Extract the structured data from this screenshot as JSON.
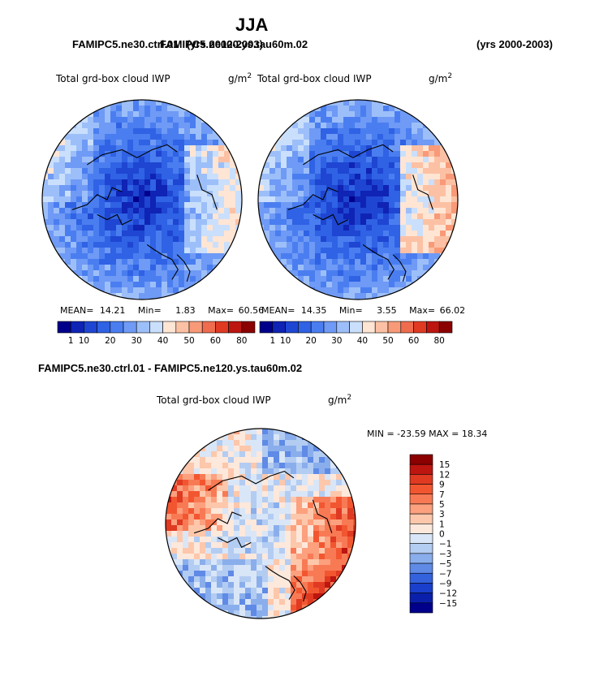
{
  "header": {
    "season": "JJA",
    "case_left": "FAMIPC5.ne30.ctrl.01",
    "case_right": "FAMIPC5.ne120.ys.tau60m.02",
    "years_left": "(yrs 2000-2003)",
    "years_right": "(yrs 2000-2003)"
  },
  "panels": {
    "left": {
      "field": "Total grd-box cloud IWP",
      "units_base": "g/m",
      "units_exp": "2",
      "stats": {
        "mean_label": "MEAN=",
        "mean": "14.21",
        "min_label": "Min=",
        "min": "1.83",
        "max_label": "Max=",
        "max": "60.56"
      }
    },
    "right": {
      "field": "Total grd-box cloud IWP",
      "units_base": "g/m",
      "units_exp": "2",
      "stats": {
        "mean_label": "MEAN=",
        "mean": "14.35",
        "min_label": "Min=",
        "min": "3.55",
        "max_label": "Max=",
        "max": "66.02"
      }
    },
    "diff": {
      "title": "FAMIPC5.ne30.ctrl.01 - FAMIPC5.ne120.ys.tau60m.02",
      "field": "Total grd-box cloud IWP",
      "units_base": "g/m",
      "units_exp": "2",
      "stats": "MIN = -23.59 MAX =  18.34"
    }
  },
  "chart_data": [
    {
      "type": "heatmap",
      "projection": "north polar stereographic",
      "title": "Total grd-box cloud IWP",
      "units": "g/m2",
      "mean": 14.21,
      "min": 1.83,
      "max": 60.56,
      "colorbar": {
        "tick_labels": [
          "1",
          "10",
          "20",
          "30",
          "40",
          "50",
          "60",
          "80"
        ],
        "colors": [
          "#00008b",
          "#0f23b4",
          "#1e46d2",
          "#2f62e4",
          "#4a7ef0",
          "#6f9af5",
          "#9dbff9",
          "#c9dffc",
          "#ffe5d4",
          "#fcc1a4",
          "#f89a78",
          "#f06c4e",
          "#e03a22",
          "#bd1510",
          "#8b0000"
        ]
      }
    },
    {
      "type": "heatmap",
      "projection": "north polar stereographic",
      "title": "Total grd-box cloud IWP",
      "units": "g/m2",
      "mean": 14.35,
      "min": 3.55,
      "max": 66.02,
      "colorbar": {
        "tick_labels": [
          "1",
          "10",
          "20",
          "30",
          "40",
          "50",
          "60",
          "80"
        ],
        "colors": [
          "#00008b",
          "#0f23b4",
          "#1e46d2",
          "#2f62e4",
          "#4a7ef0",
          "#6f9af5",
          "#9dbff9",
          "#c9dffc",
          "#ffe5d4",
          "#fcc1a4",
          "#f89a78",
          "#f06c4e",
          "#e03a22",
          "#bd1510",
          "#8b0000"
        ]
      }
    },
    {
      "type": "heatmap",
      "projection": "north polar stereographic",
      "title": "Total grd-box cloud IWP",
      "units": "g/m2",
      "min": -23.59,
      "max": 18.34,
      "colorbar": {
        "tick_labels": [
          "15",
          "12",
          "9",
          "7",
          "5",
          "3",
          "1",
          "0",
          "-1",
          "-3",
          "-5",
          "-7",
          "-9",
          "-12",
          "-15"
        ],
        "colors": [
          "#8b0000",
          "#bd1510",
          "#e03a22",
          "#f25630",
          "#f87a55",
          "#fca07e",
          "#fdc7ab",
          "#fde8dc",
          "#d9e6f7",
          "#b3ccf2",
          "#8aaeec",
          "#5f8ae6",
          "#3362dc",
          "#1a3fcc",
          "#0a20ab",
          "#00008b"
        ]
      }
    }
  ]
}
